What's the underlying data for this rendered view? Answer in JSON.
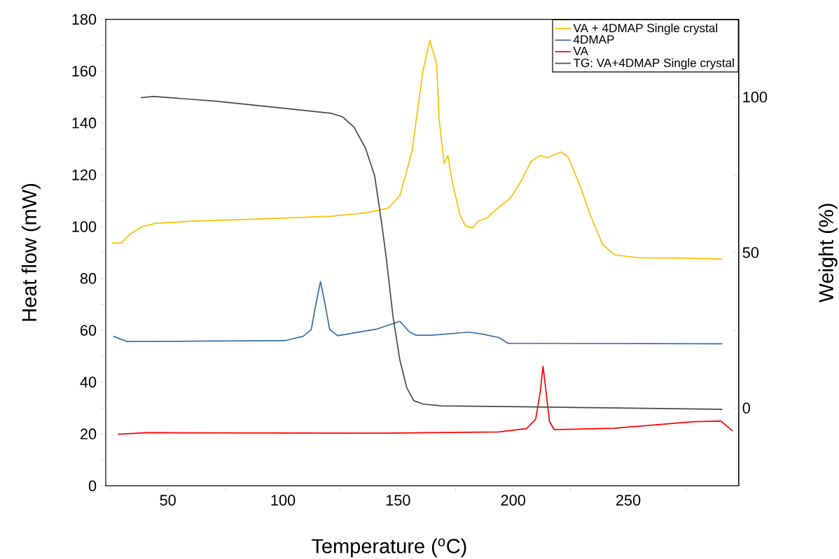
{
  "chart_data": {
    "type": "line",
    "xlabel": "Temperature ($^{o}$C)",
    "ylabel": "Heat flow (mW)",
    "y2label": "Weight (%)",
    "xlim": [
      23,
      298
    ],
    "ylim": [
      0,
      180
    ],
    "y2lim": [
      -25,
      125
    ],
    "xticks": [
      {
        "value": 25,
        "label": null
      },
      50,
      {
        "value": 75,
        "label": null
      },
      100,
      {
        "value": 125,
        "label": null
      },
      150,
      {
        "value": 175,
        "label": null
      },
      200,
      {
        "value": 225,
        "label": null
      },
      250,
      {
        "value": 275,
        "label": null
      }
    ],
    "yticks": [
      0,
      {
        "value": 10,
        "label": null
      },
      20,
      {
        "value": 30,
        "label": null
      },
      40,
      {
        "value": 50,
        "label": null
      },
      60,
      {
        "value": 70,
        "label": null
      },
      80,
      {
        "value": 90,
        "label": null
      },
      100,
      {
        "value": 110,
        "label": null
      },
      120,
      {
        "value": 130,
        "label": null
      },
      140,
      {
        "value": 150,
        "label": null
      },
      160,
      {
        "value": 170,
        "label": null
      },
      180
    ],
    "y2ticks": [
      0,
      {
        "value": 25,
        "label": null
      },
      50,
      {
        "value": 75,
        "label": null
      },
      100
    ],
    "legend": "top right",
    "grid": false,
    "marker": "none",
    "line_style": "solid",
    "series": [
      {
        "name": "VA + 4DMAP Single crystal",
        "color": "#ffc000",
        "x": [
          25.7,
          29.8,
          33.8,
          38.8,
          44.8,
          60.8,
          90.8,
          120.8,
          135.8,
          145.8,
          150.8,
          156,
          160.8,
          163.8,
          166.8,
          167.8,
          170,
          171.6,
          173.8,
          176.8,
          179.3,
          182.3,
          184.8,
          188.8,
          193.8,
          198.8,
          203.8,
          207.8,
          211.8,
          214.8,
          220.8,
          223.8,
          228.8,
          233.8,
          238.8,
          243.8,
          253.8,
          273.8,
          290.9
        ],
        "values": [
          93.7,
          93.7,
          97.3,
          100,
          101.3,
          102.1,
          103,
          104,
          105.3,
          107.2,
          112,
          128.8,
          160,
          171.9,
          162.6,
          142,
          124.3,
          127.5,
          116.3,
          104.8,
          100.3,
          99.5,
          102.1,
          103.5,
          107.5,
          111,
          118.1,
          125.2,
          127.5,
          126.6,
          128.8,
          127,
          116.3,
          103.9,
          93.2,
          89.2,
          88,
          87.9,
          87.5
        ]
      },
      {
        "name": "4DMAP",
        "color": "#3a6ea5",
        "x": [
          26.3,
          32.3,
          60.8,
          100.8,
          108.8,
          112.3,
          114.3,
          116.3,
          118.3,
          120.3,
          123.8,
          140.8,
          150.8,
          154.8,
          157.8,
          164.8,
          180.8,
          186.8,
          193.8,
          197.8,
          290.9
        ],
        "values": [
          57.7,
          55.7,
          55.8,
          56,
          57.7,
          60.3,
          70.1,
          78.8,
          70.1,
          60.3,
          57.9,
          60.5,
          63.5,
          59.5,
          58.1,
          58.1,
          59.3,
          58.5,
          57.2,
          55,
          54.8
        ]
      },
      {
        "name": "VA",
        "color": "#ff0000",
        "x": [
          28.3,
          41.3,
          143.8,
          193.8,
          205.8,
          209.8,
          211.8,
          213,
          214.3,
          215.8,
          217.8,
          243.8,
          278.8,
          290.3,
          295.3
        ],
        "values": [
          19.9,
          20.5,
          20.3,
          20.8,
          22.1,
          25.7,
          36.3,
          46.1,
          36.3,
          24.8,
          21.7,
          22.2,
          24.8,
          25,
          21.2
        ]
      },
      {
        "name": "TG: VA+4DMAP Single crystal",
        "color": "#4a4a4a",
        "axis": "y2",
        "x": [
          38.3,
          43.8,
          70.8,
          100.8,
          120.8,
          125.8,
          130.8,
          135.8,
          139.8,
          142.8,
          144.8,
          147.8,
          150.8,
          153.8,
          156.8,
          160.8,
          168.8,
          238.8,
          290.9
        ],
        "values": [
          99.8,
          100.2,
          98.7,
          96.4,
          94.8,
          93.7,
          90.4,
          83.7,
          74.8,
          59.9,
          48.8,
          29.5,
          15.4,
          6.5,
          2.4,
          1.3,
          0.7,
          0.1,
          -0.4
        ]
      }
    ]
  }
}
